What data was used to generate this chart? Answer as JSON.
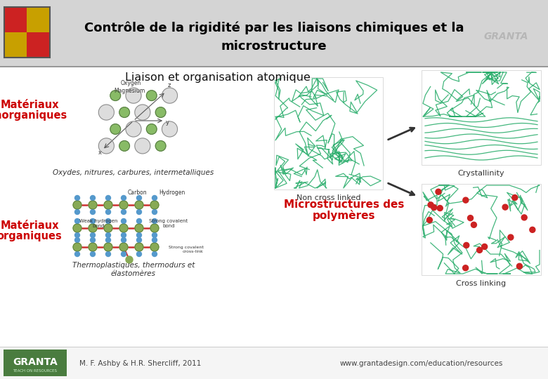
{
  "title_line1": "Contrôle de la rigidité par les liaisons chimiques et la",
  "title_line2": "microstructure",
  "subtitle": "Liaison et organisation atomique",
  "label_inorganique_line1": "Matériaux",
  "label_inorganique_line2": "inorganiques",
  "label_inorganique_color": "#cc0000",
  "caption_inorganique": "Oxydes, nitrures, carbures, intermetalliques",
  "label_organique_line1": "Matériaux",
  "label_organique_line2": "organiques",
  "label_organique_color": "#cc0000",
  "caption_organique_line1": "Thermoplastiques, thermodurs et",
  "caption_organique_line2": "élastomères",
  "label_micro_line1": "Microstructures des",
  "label_micro_line2": "polymères",
  "label_micro_color": "#cc0000",
  "caption_crystallinity": "Crystallinity",
  "caption_non_cross": "Non cross linked",
  "caption_cross": "Cross linking",
  "footer_left": "M. F. Ashby & H.R. Shercliff, 2011",
  "footer_right": "www.grantadesign.com/education/resources",
  "granta_watermark": "GRANTA",
  "bg_color": "#ffffff",
  "header_bg": "#d4d4d4",
  "title_color": "#000000",
  "granta_color": "#aaaaaa",
  "footer_bg": "#4a7c3f",
  "content_bg": "#ffffff",
  "header_line_color": "#888888"
}
